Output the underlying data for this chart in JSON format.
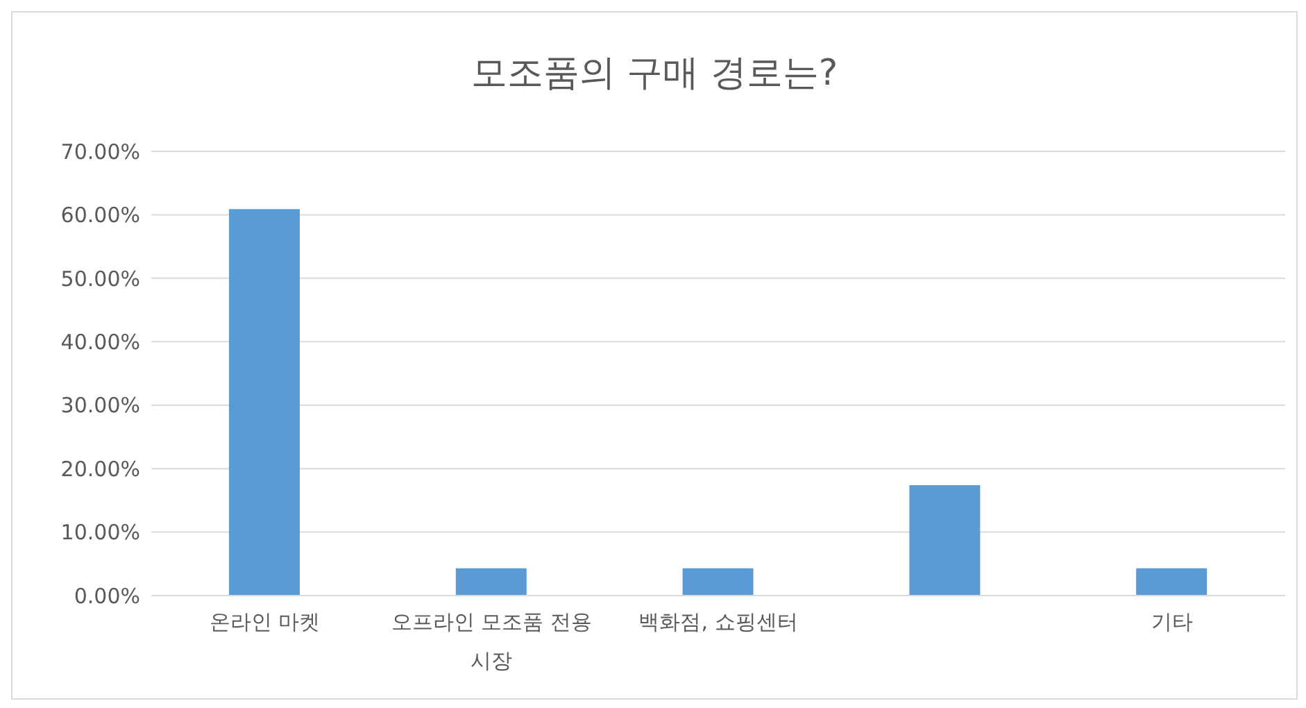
{
  "chart_data": {
    "type": "bar",
    "title": "모조품의 구매 경로는?",
    "categories": [
      "온라인 마켓",
      "오프라인 모조품 전용 시장",
      "백화점, 쇼핑센터",
      null,
      "기타"
    ],
    "values": [
      60.9,
      4.3,
      4.3,
      17.4,
      4.3
    ],
    "color": "#5b9bd5",
    "ylim": [
      0,
      70
    ],
    "yticks": [
      {
        "value": 0,
        "label": "0.00%"
      },
      {
        "value": 10,
        "label": "10.00%"
      },
      {
        "value": 20,
        "label": "20.00%"
      },
      {
        "value": 30,
        "label": "30.00%"
      },
      {
        "value": 40,
        "label": "40.00%"
      },
      {
        "value": 50,
        "label": "50.00%"
      },
      {
        "value": 60,
        "label": "60.00%"
      },
      {
        "value": 70,
        "label": "70.00%"
      }
    ],
    "grid": "y",
    "legend": false
  }
}
